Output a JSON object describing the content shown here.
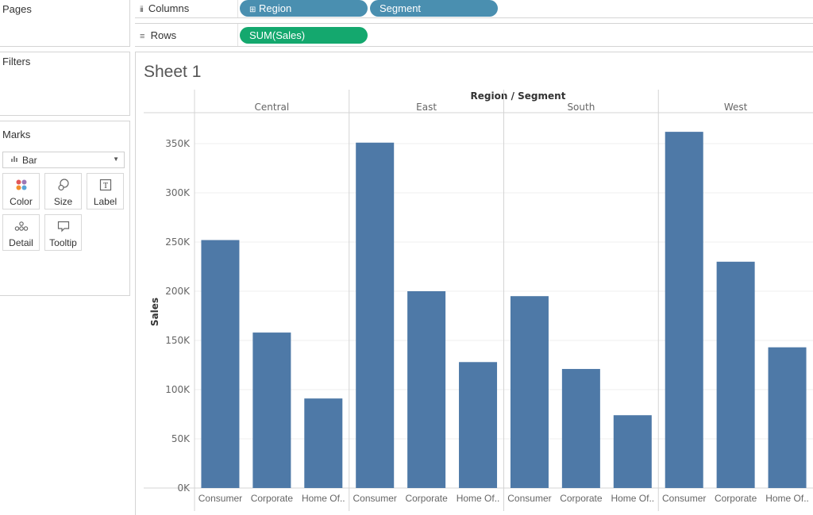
{
  "sidebar": {
    "pages_title": "Pages",
    "filters_title": "Filters",
    "marks_title": "Marks",
    "mark_type": "Bar",
    "mark_buttons": [
      {
        "label": "Color",
        "icon": "color-dots-icon"
      },
      {
        "label": "Size",
        "icon": "size-circles-icon"
      },
      {
        "label": "Label",
        "icon": "text-label-icon"
      },
      {
        "label": "Detail",
        "icon": "detail-dots-icon"
      },
      {
        "label": "Tooltip",
        "icon": "tooltip-bubble-icon"
      }
    ]
  },
  "shelves": {
    "columns_label": "Columns",
    "rows_label": "Rows",
    "column_pills": [
      "Region",
      "Segment"
    ],
    "row_pills": [
      "SUM(Sales)"
    ]
  },
  "sheet": {
    "title": "Sheet 1"
  },
  "colors": {
    "bar": "#4e79a7",
    "pill_dimension": "#4a8fb0",
    "pill_measure": "#14a86e"
  },
  "chart_data": {
    "type": "bar",
    "title": "",
    "header_title": "Region / Segment",
    "ylabel": "Sales",
    "ylim": [
      0,
      350000
    ],
    "yticks": [
      0,
      50000,
      100000,
      150000,
      200000,
      250000,
      300000,
      350000
    ],
    "ytick_labels": [
      "0K",
      "50K",
      "100K",
      "150K",
      "200K",
      "250K",
      "300K",
      "350K"
    ],
    "groups": [
      {
        "name": "Central",
        "categories": [
          "Consumer",
          "Corporate",
          "Home Of.."
        ],
        "values": [
          252000,
          158000,
          91000
        ]
      },
      {
        "name": "East",
        "categories": [
          "Consumer",
          "Corporate",
          "Home Of.."
        ],
        "values": [
          351000,
          200000,
          128000
        ]
      },
      {
        "name": "South",
        "categories": [
          "Consumer",
          "Corporate",
          "Home Of.."
        ],
        "values": [
          195000,
          121000,
          74000
        ]
      },
      {
        "name": "West",
        "categories": [
          "Consumer",
          "Corporate",
          "Home Of.."
        ],
        "values": [
          362000,
          230000,
          143000
        ]
      }
    ],
    "grid": true
  }
}
